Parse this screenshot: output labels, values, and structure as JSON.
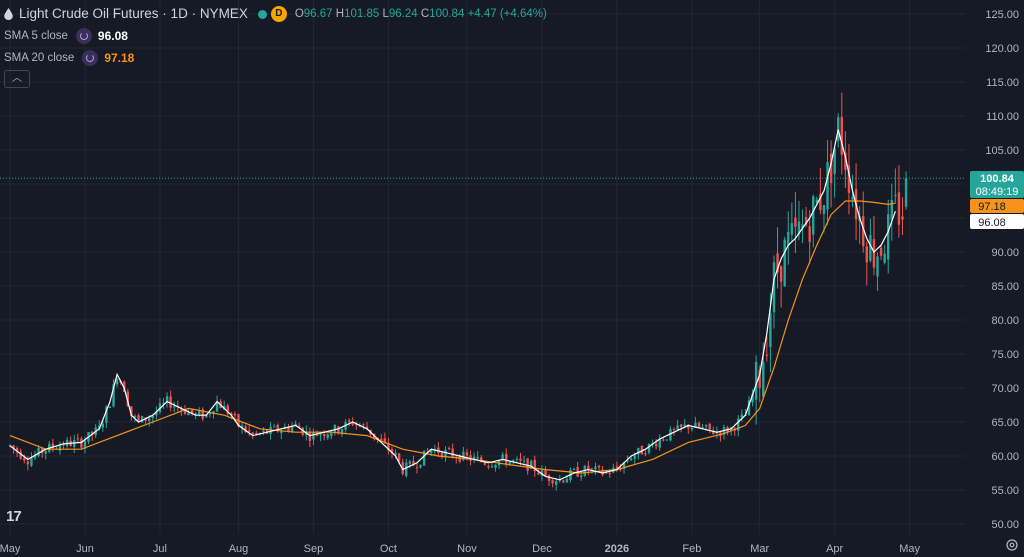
{
  "header": {
    "symbol_title": "Light Crude Oil Futures · 1D · NYMEX",
    "badge_letter": "D",
    "ohlc": {
      "o_label": "O",
      "o": "96.67",
      "h_label": "H",
      "h": "101.85",
      "l_label": "L",
      "l": "96.24",
      "c_label": "C",
      "c": "100.84",
      "change": "+4.47 (+4.64%)"
    }
  },
  "indicators": [
    {
      "name": "SMA 5 close",
      "value": "96.08",
      "color": "#ffffff"
    },
    {
      "name": "SMA 20 close",
      "value": "97.18",
      "color": "#f7931a"
    }
  ],
  "price_tags": {
    "last": "100.84",
    "countdown": "08:49:19",
    "sma20": "97.18",
    "sma5": "96.08"
  },
  "colors": {
    "up": "#26a69a",
    "down": "#ef5350",
    "sma5": "#ffffff",
    "sma20": "#f7931a",
    "background": "#161a25",
    "grid": "#232733"
  },
  "chart_data": {
    "type": "candlestick",
    "y_ticks": [
      "125.00",
      "120.00",
      "115.00",
      "110.00",
      "105.00",
      "100.00",
      "95.00",
      "90.00",
      "85.00",
      "80.00",
      "75.00",
      "70.00",
      "65.00",
      "60.00",
      "55.00",
      "50.00"
    ],
    "ylim": [
      48.5,
      128
    ],
    "x_ticks": [
      "May",
      "Jun",
      "Jul",
      "Aug",
      "Sep",
      "Oct",
      "Nov",
      "Dec",
      "2026",
      "Feb",
      "Mar",
      "Apr",
      "May"
    ],
    "x_tick_days": [
      0,
      21,
      42,
      64,
      85,
      106,
      128,
      149,
      170,
      191,
      210,
      231,
      252
    ],
    "series_sma5": [
      [
        0,
        61.5
      ],
      [
        5,
        59.5
      ],
      [
        10,
        61
      ],
      [
        15,
        61.8
      ],
      [
        20,
        62
      ],
      [
        25,
        64
      ],
      [
        28,
        68
      ],
      [
        30,
        72
      ],
      [
        32,
        70
      ],
      [
        34,
        66
      ],
      [
        36,
        65
      ],
      [
        40,
        66
      ],
      [
        44,
        68
      ],
      [
        48,
        67
      ],
      [
        52,
        66
      ],
      [
        55,
        66
      ],
      [
        58,
        68
      ],
      [
        62,
        66
      ],
      [
        64,
        64.5
      ],
      [
        68,
        63
      ],
      [
        72,
        63.5
      ],
      [
        76,
        64
      ],
      [
        80,
        64.5
      ],
      [
        84,
        63
      ],
      [
        88,
        63.5
      ],
      [
        92,
        64
      ],
      [
        96,
        65
      ],
      [
        100,
        64
      ],
      [
        104,
        62
      ],
      [
        108,
        60
      ],
      [
        110,
        58
      ],
      [
        114,
        59
      ],
      [
        118,
        61
      ],
      [
        122,
        60.5
      ],
      [
        126,
        60
      ],
      [
        130,
        59.5
      ],
      [
        134,
        59
      ],
      [
        138,
        59.5
      ],
      [
        142,
        59
      ],
      [
        146,
        58.5
      ],
      [
        150,
        57
      ],
      [
        154,
        56.5
      ],
      [
        158,
        57.5
      ],
      [
        162,
        58
      ],
      [
        166,
        57.5
      ],
      [
        170,
        58
      ],
      [
        174,
        60
      ],
      [
        178,
        61
      ],
      [
        182,
        62.5
      ],
      [
        186,
        63.5
      ],
      [
        190,
        64.5
      ],
      [
        194,
        64
      ],
      [
        198,
        63.5
      ],
      [
        202,
        64
      ],
      [
        206,
        66
      ],
      [
        210,
        72
      ],
      [
        212,
        78
      ],
      [
        214,
        86
      ],
      [
        216,
        89
      ],
      [
        218,
        91
      ],
      [
        220,
        92
      ],
      [
        224,
        95
      ],
      [
        228,
        99
      ],
      [
        230,
        103
      ],
      [
        232,
        108
      ],
      [
        234,
        104
      ],
      [
        236,
        99
      ],
      [
        238,
        95
      ],
      [
        240,
        92
      ],
      [
        242,
        90
      ],
      [
        244,
        91
      ],
      [
        246,
        93
      ],
      [
        248,
        96
      ]
    ],
    "series_sma20": [
      [
        0,
        63
      ],
      [
        10,
        61
      ],
      [
        20,
        61
      ],
      [
        30,
        63
      ],
      [
        40,
        65
      ],
      [
        50,
        67
      ],
      [
        60,
        66
      ],
      [
        70,
        64
      ],
      [
        80,
        63.5
      ],
      [
        90,
        63.5
      ],
      [
        100,
        63
      ],
      [
        110,
        61
      ],
      [
        120,
        60
      ],
      [
        130,
        59.5
      ],
      [
        140,
        58.7
      ],
      [
        150,
        58
      ],
      [
        160,
        57.5
      ],
      [
        170,
        58
      ],
      [
        180,
        59.5
      ],
      [
        190,
        62
      ],
      [
        200,
        63.3
      ],
      [
        206,
        64.5
      ],
      [
        210,
        67
      ],
      [
        214,
        73
      ],
      [
        218,
        80
      ],
      [
        222,
        86
      ],
      [
        226,
        91
      ],
      [
        230,
        95.5
      ],
      [
        234,
        97.5
      ],
      [
        238,
        97.5
      ],
      [
        242,
        97.3
      ],
      [
        246,
        97
      ],
      [
        248,
        97.18
      ]
    ]
  }
}
